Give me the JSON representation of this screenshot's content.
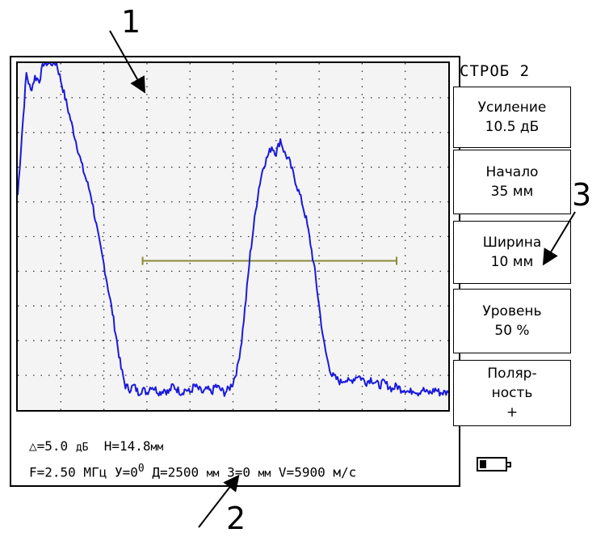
{
  "callouts": {
    "c1": "1",
    "c2": "2",
    "c3": "3"
  },
  "menu": {
    "title": "СТРОБ 2",
    "gain": {
      "line1": "Усиление",
      "line2": "10.5 дБ"
    },
    "start": {
      "line1": "Начало",
      "line2": "35 мм"
    },
    "width": {
      "line1": "Ширина",
      "line2": "10 мм"
    },
    "level": {
      "line1": "Уровень",
      "line2": "50 %"
    },
    "polarity": {
      "line1": "Поляр-",
      "line2": "ность",
      "line3": "+"
    }
  },
  "status": {
    "delta_symbol": "△",
    "delta_value": "=5.0",
    "delta_unit": "дБ",
    "h_label": "H=14.8",
    "h_unit": "мм",
    "line2": {
      "freq": "F=2.50 МГц",
      "angle": "У=0",
      "angle_sup": "0",
      "dist": "Д=2500",
      "dist_unit": "мм",
      "z": "З=0",
      "z_unit": "мм",
      "v": "V=5900",
      "v_unit": "м/с"
    }
  },
  "battery": {
    "level": 0.25
  },
  "chart_data": {
    "type": "line",
    "series": [
      {
        "values": [
          [
            0,
            62
          ],
          [
            1,
            80
          ],
          [
            2,
            97
          ],
          [
            3,
            92
          ],
          [
            4,
            96
          ],
          [
            5,
            95
          ],
          [
            6,
            100
          ],
          [
            7,
            100
          ],
          [
            8,
            100
          ],
          [
            9,
            100
          ],
          [
            10,
            95
          ],
          [
            11,
            90
          ],
          [
            12,
            85
          ],
          [
            13,
            80
          ],
          [
            14,
            75
          ],
          [
            15,
            70
          ],
          [
            16,
            66
          ],
          [
            17,
            62
          ],
          [
            18,
            55
          ],
          [
            19,
            48
          ],
          [
            20,
            42
          ],
          [
            21,
            35
          ],
          [
            22,
            28
          ],
          [
            23,
            20
          ],
          [
            24,
            12
          ],
          [
            25,
            7
          ],
          [
            26,
            6
          ],
          [
            27,
            7
          ],
          [
            28,
            5
          ],
          [
            29,
            6
          ],
          [
            30,
            5
          ],
          [
            31,
            7
          ],
          [
            32,
            6
          ],
          [
            33,
            5
          ],
          [
            34,
            6
          ],
          [
            35,
            5
          ],
          [
            36,
            7
          ],
          [
            37,
            6
          ],
          [
            38,
            5
          ],
          [
            39,
            6
          ],
          [
            40,
            5
          ],
          [
            41,
            7
          ],
          [
            42,
            6
          ],
          [
            43,
            5
          ],
          [
            44,
            6
          ],
          [
            45,
            5
          ],
          [
            46,
            7
          ],
          [
            47,
            6
          ],
          [
            48,
            5
          ],
          [
            49,
            6
          ],
          [
            50,
            8
          ],
          [
            51,
            12
          ],
          [
            52,
            20
          ],
          [
            53,
            32
          ],
          [
            54,
            45
          ],
          [
            55,
            55
          ],
          [
            56,
            64
          ],
          [
            57,
            70
          ],
          [
            58,
            73
          ],
          [
            59,
            76
          ],
          [
            60,
            74
          ],
          [
            61,
            78
          ],
          [
            62,
            74
          ],
          [
            63,
            72
          ],
          [
            64,
            68
          ],
          [
            65,
            64
          ],
          [
            66,
            60
          ],
          [
            67,
            55
          ],
          [
            68,
            48
          ],
          [
            69,
            40
          ],
          [
            70,
            30
          ],
          [
            71,
            20
          ],
          [
            72,
            14
          ],
          [
            73,
            10
          ],
          [
            74,
            9
          ],
          [
            75,
            8
          ],
          [
            76,
            9
          ],
          [
            77,
            8
          ],
          [
            78,
            9
          ],
          [
            79,
            10
          ],
          [
            80,
            9
          ],
          [
            81,
            8
          ],
          [
            82,
            9
          ],
          [
            83,
            8
          ],
          [
            84,
            7
          ],
          [
            85,
            8
          ],
          [
            86,
            7
          ],
          [
            87,
            6
          ],
          [
            88,
            7
          ],
          [
            89,
            6
          ],
          [
            90,
            6
          ],
          [
            91,
            5
          ],
          [
            92,
            6
          ],
          [
            93,
            5
          ],
          [
            94,
            6
          ],
          [
            95,
            5
          ],
          [
            96,
            5
          ],
          [
            97,
            6
          ],
          [
            98,
            5
          ],
          [
            99,
            5
          ],
          [
            100,
            5
          ]
        ]
      }
    ],
    "gate": {
      "start": 29,
      "end": 88,
      "level": 43
    },
    "xlim": [
      0,
      100
    ],
    "ylim": [
      0,
      100
    ],
    "grid": true,
    "grid_divisions": {
      "x": 10,
      "y": 10
    },
    "colors": {
      "trace": "#1a1adc",
      "gate": "#8a8a3a",
      "grid": "#333333"
    }
  }
}
